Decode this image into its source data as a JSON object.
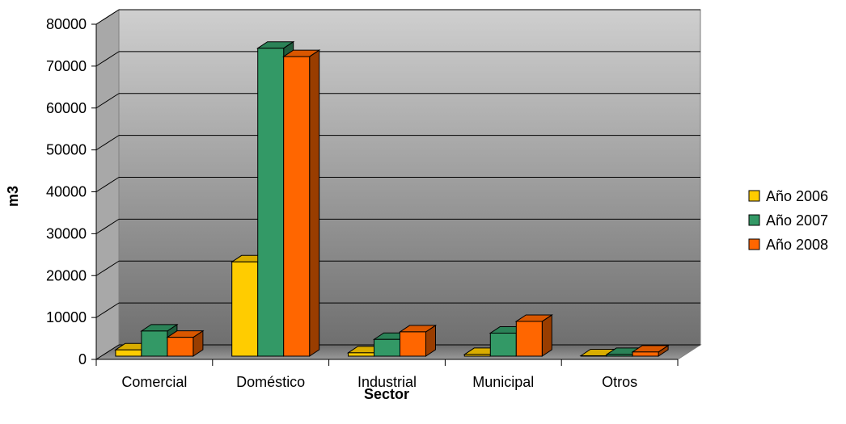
{
  "chart_data": {
    "type": "bar",
    "title": "",
    "xlabel": "Sector",
    "ylabel": "m3",
    "ylim": [
      0,
      80000
    ],
    "yticks": [
      0,
      10000,
      20000,
      30000,
      40000,
      50000,
      60000,
      70000,
      80000
    ],
    "categories": [
      "Comercial",
      "Doméstico",
      "Industrial",
      "Municipal",
      "Otros"
    ],
    "series": [
      {
        "name": "Año 2006",
        "color": "#FFCC00",
        "values": [
          1500,
          22500,
          800,
          400,
          100
        ]
      },
      {
        "name": "Año 2007",
        "color": "#339966",
        "values": [
          6000,
          73500,
          4000,
          5500,
          400
        ]
      },
      {
        "name": "Año 2008",
        "color": "#FF6600",
        "values": [
          4500,
          71500,
          5800,
          8300,
          1000
        ]
      }
    ],
    "grid": true,
    "legend": "right",
    "style": "3d-clustered-column"
  }
}
